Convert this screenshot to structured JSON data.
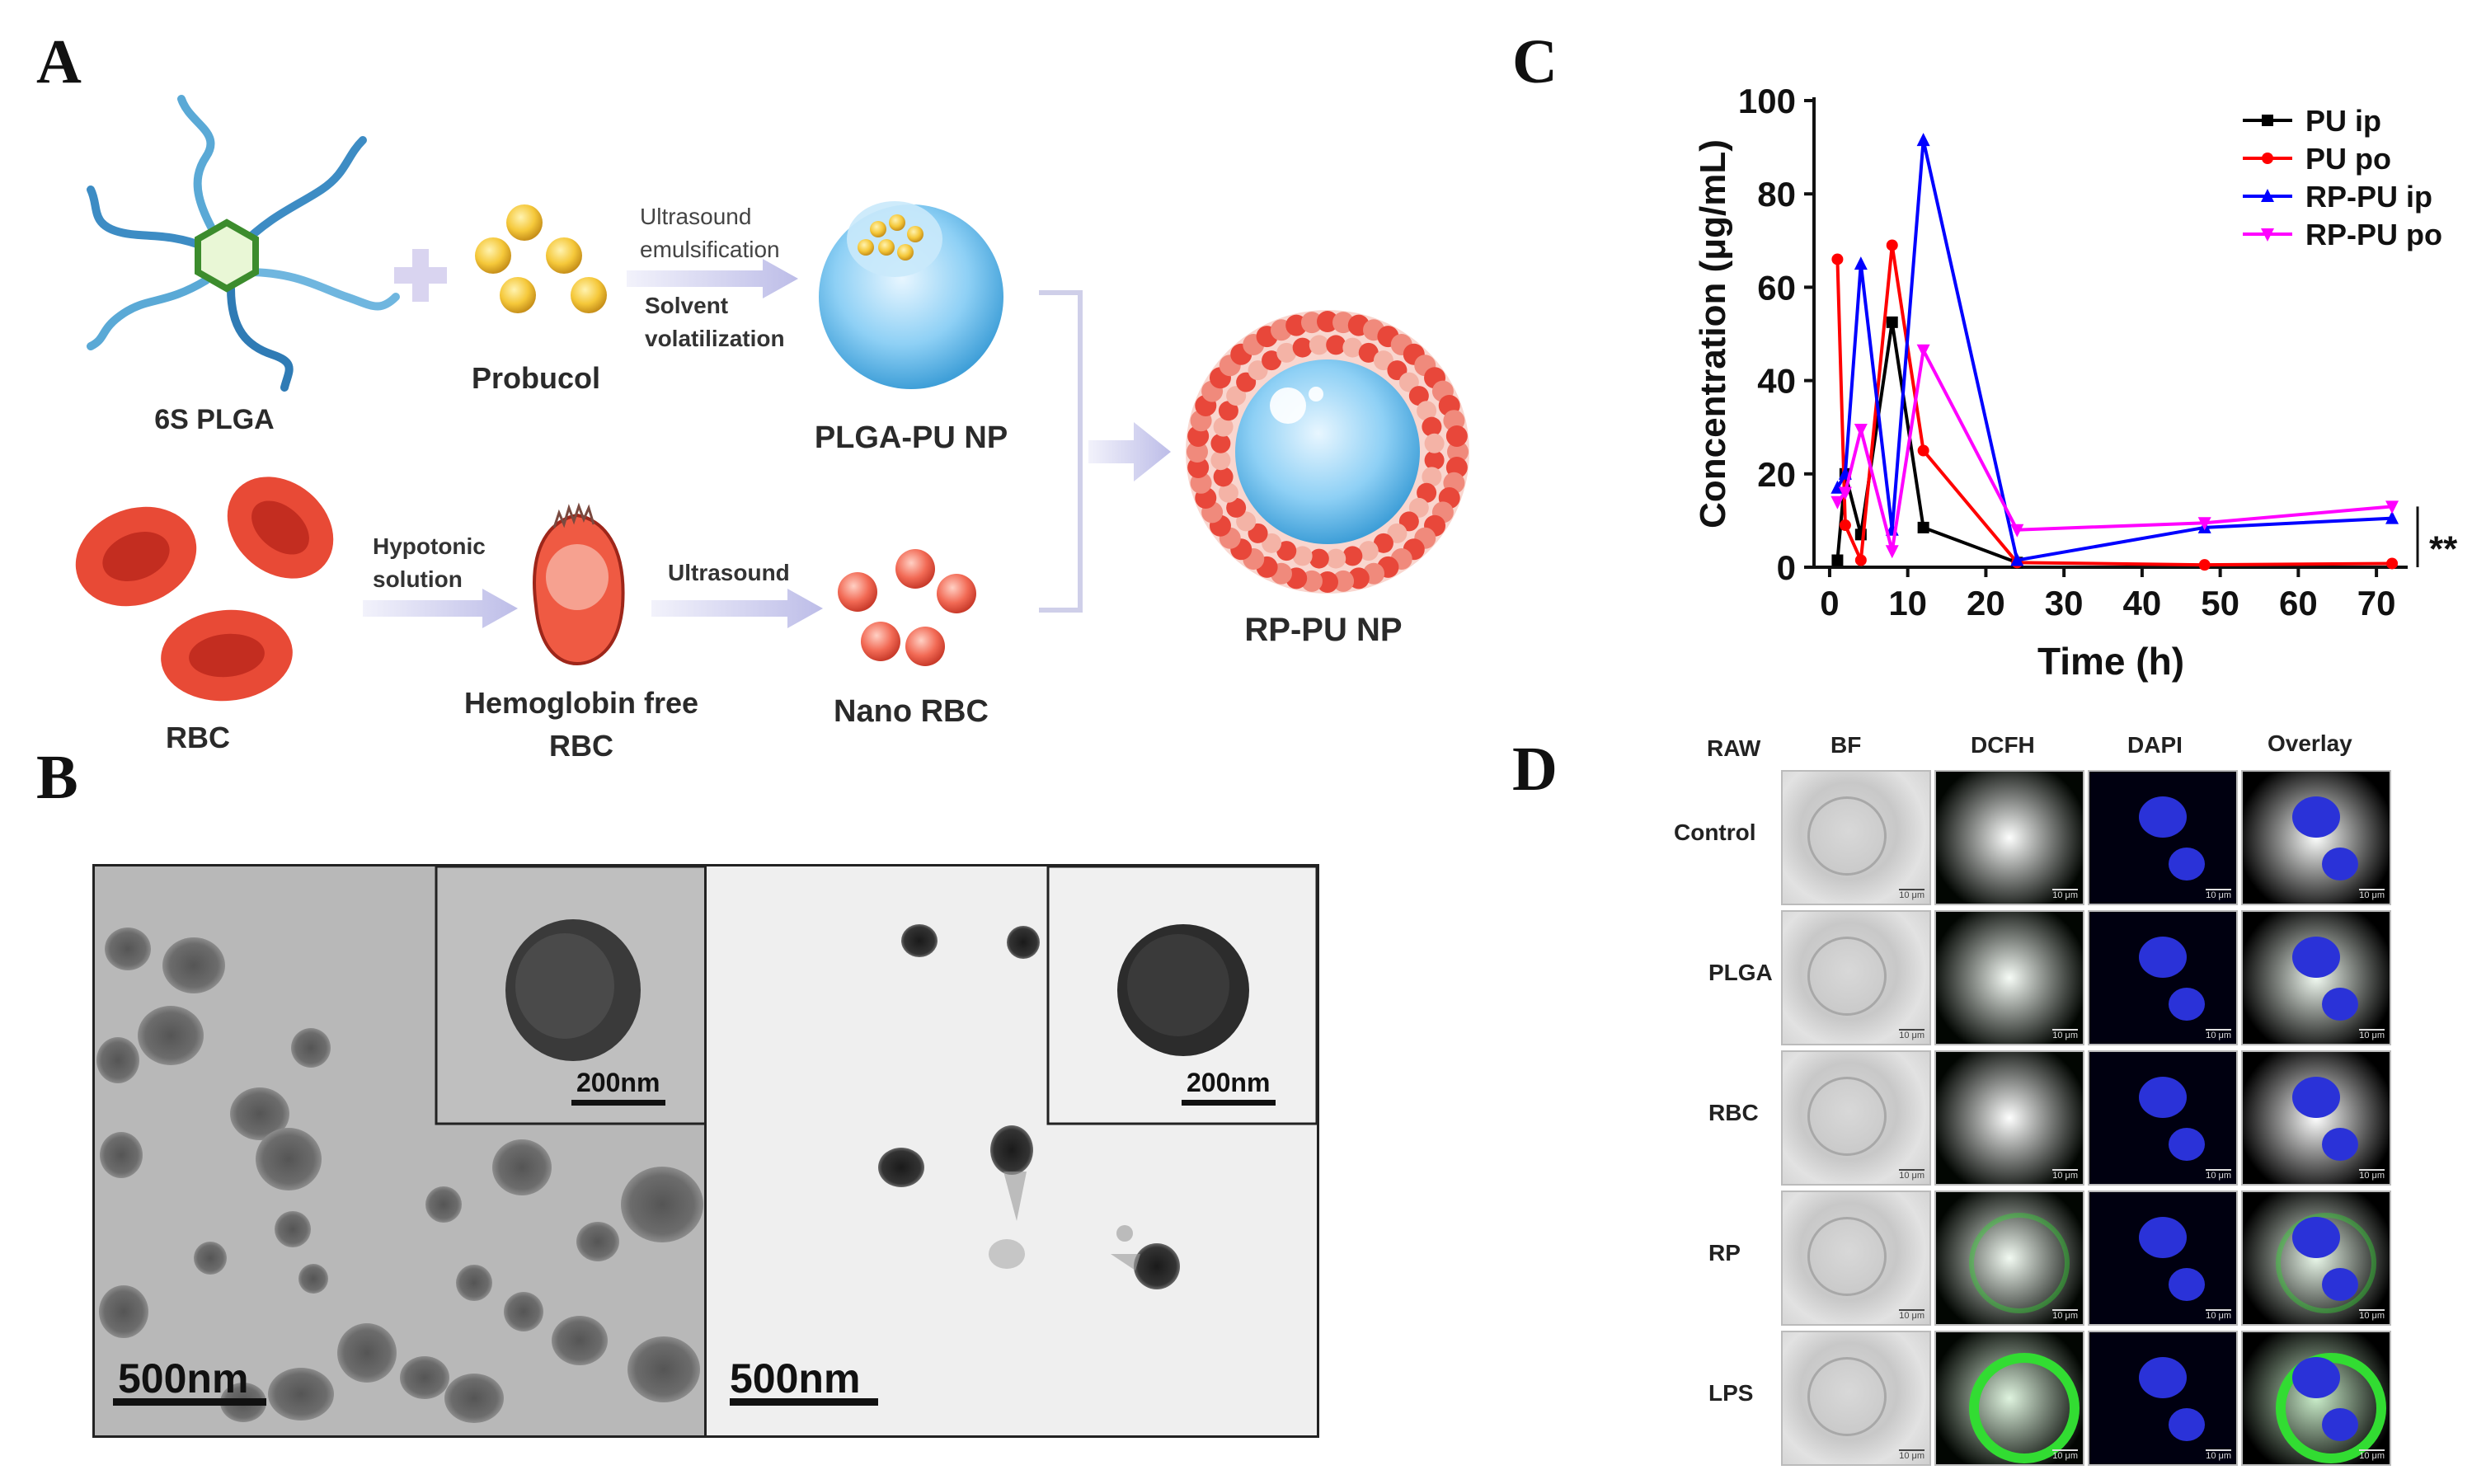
{
  "panels": {
    "a": "A",
    "b": "B",
    "c": "C",
    "d": "D"
  },
  "panel_a": {
    "plga_label": "6S PLGA",
    "probucol_label": "Probucol",
    "step1_line1": "Ultrasound",
    "step1_line2": "emulsification",
    "step1_line3": "Solvent",
    "step1_line4": "volatilization",
    "plga_pu_label": "PLGA-PU NP",
    "rbc_label": "RBC",
    "step2_line1": "Hypotonic",
    "step2_line2": "solution",
    "hemo_line1": "Hemoglobin free",
    "hemo_line2": "RBC",
    "step3_label": "Ultrasound",
    "nano_rbc_label": "Nano RBC",
    "rp_pu_label": "RP-PU NP"
  },
  "panel_b": {
    "left_scale": "500nm",
    "left_inset_scale": "200nm",
    "right_scale": "500nm",
    "right_inset_scale": "200nm"
  },
  "chart_data": {
    "type": "line",
    "title": "",
    "xlabel": "Time (h)",
    "ylabel": "Concentration (μg/mL)",
    "xlim": [
      -2,
      74
    ],
    "ylim": [
      0,
      100
    ],
    "xticks": [
      0,
      10,
      20,
      30,
      40,
      50,
      60,
      70
    ],
    "yticks": [
      0,
      20,
      40,
      60,
      80,
      100
    ],
    "legend_position": "top-right",
    "significance": "**",
    "series": [
      {
        "name": "PU ip",
        "color": "#000000",
        "marker": "square",
        "x": [
          1,
          2,
          4,
          8,
          12,
          24
        ],
        "y": [
          1.5,
          20,
          7,
          52.5,
          8.5,
          1
        ]
      },
      {
        "name": "PU po",
        "color": "#ff0000",
        "marker": "circle",
        "x": [
          1,
          2,
          4,
          8,
          12,
          24,
          48,
          72
        ],
        "y": [
          66,
          9,
          1.5,
          69,
          25,
          1,
          0.5,
          0.8
        ]
      },
      {
        "name": "RP-PU ip",
        "color": "#0000ff",
        "marker": "triangle",
        "x": [
          1,
          2,
          4,
          8,
          12,
          24,
          48,
          72
        ],
        "y": [
          17,
          20,
          65,
          8,
          91.5,
          1.5,
          8.5,
          10.5
        ]
      },
      {
        "name": "RP-PU po",
        "color": "#ff00ff",
        "marker": "triangle-down",
        "x": [
          1,
          2,
          4,
          8,
          12,
          24,
          48,
          72
        ],
        "y": [
          14,
          16,
          29.5,
          3.5,
          46.5,
          8,
          9.5,
          13
        ]
      }
    ]
  },
  "panel_d": {
    "corner_label": "RAW",
    "columns": [
      "BF",
      "DCFH",
      "DAPI",
      "Overlay"
    ],
    "rows": [
      "Control",
      "PLGA",
      "RBC",
      "RP",
      "LPS"
    ],
    "scale_text": "10 μm",
    "green_intensity": [
      0.05,
      0.25,
      0.02,
      0.4,
      1.0
    ]
  }
}
